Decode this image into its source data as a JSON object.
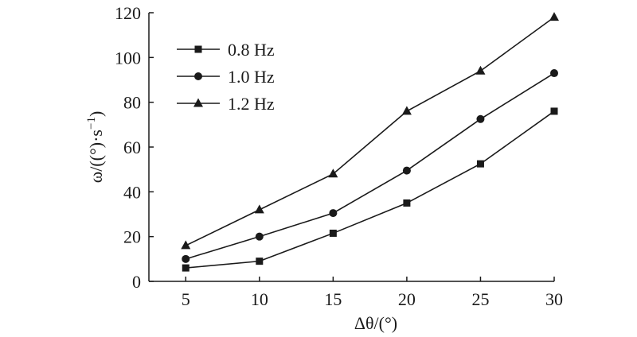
{
  "chart_data": {
    "type": "line",
    "xlabel": "Δθ/(°)",
    "ylabel_parts": [
      "ω/((°)·s",
      "−1",
      ")"
    ],
    "x": [
      5,
      10,
      15,
      20,
      25,
      30
    ],
    "x_ticks": [
      "5",
      "10",
      "15",
      "20",
      "25",
      "30"
    ],
    "y_ticks": [
      "0",
      "20",
      "40",
      "60",
      "80",
      "100",
      "120"
    ],
    "xlim": [
      2.5,
      30
    ],
    "ylim": [
      0,
      120
    ],
    "legend_position": "top-left",
    "grid": false,
    "series": [
      {
        "name": "0.8 Hz",
        "marker": "square",
        "values": [
          6,
          9,
          21.5,
          35,
          52.5,
          76
        ]
      },
      {
        "name": "1.0 Hz",
        "marker": "circle",
        "values": [
          10,
          20,
          30.5,
          49.5,
          72.5,
          93
        ]
      },
      {
        "name": "1.2 Hz",
        "marker": "triangle",
        "values": [
          16,
          32,
          48,
          76,
          94,
          118
        ]
      }
    ],
    "colors": {
      "line": "#1a1a1a",
      "marker": "#1a1a1a",
      "axis": "#1a1a1a"
    }
  }
}
